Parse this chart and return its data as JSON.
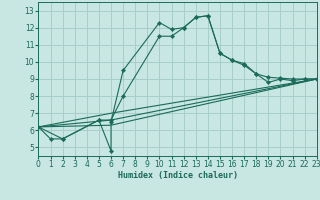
{
  "xlabel": "Humidex (Indice chaleur)",
  "xlim": [
    0,
    23
  ],
  "ylim": [
    4.5,
    13.5
  ],
  "xticks": [
    0,
    1,
    2,
    3,
    4,
    5,
    6,
    7,
    8,
    9,
    10,
    11,
    12,
    13,
    14,
    15,
    16,
    17,
    18,
    19,
    20,
    21,
    22,
    23
  ],
  "yticks": [
    5,
    6,
    7,
    8,
    9,
    10,
    11,
    12,
    13
  ],
  "bg_color": "#c8e6e2",
  "grid_color": "#a8ceca",
  "line_color": "#1a6b5a",
  "curve1_x": [
    0,
    1,
    2,
    5,
    6,
    6,
    7,
    10,
    11,
    12,
    13,
    14,
    15,
    16,
    17,
    18,
    19,
    20,
    21,
    22,
    23
  ],
  "curve1_y": [
    6.2,
    5.5,
    5.5,
    6.6,
    4.8,
    6.5,
    9.5,
    12.3,
    11.9,
    12.0,
    12.6,
    12.7,
    10.5,
    10.1,
    9.9,
    9.3,
    9.1,
    9.05,
    9.0,
    9.0,
    9.0
  ],
  "curve2_x": [
    0,
    2,
    5,
    6,
    7,
    10,
    11,
    12,
    13,
    14,
    15,
    16,
    17,
    18,
    19,
    20,
    21,
    22,
    23
  ],
  "curve2_y": [
    6.2,
    5.5,
    6.6,
    6.6,
    8.0,
    11.5,
    11.5,
    12.0,
    12.6,
    12.7,
    10.5,
    10.1,
    9.8,
    9.3,
    8.8,
    9.0,
    8.9,
    9.0,
    9.0
  ],
  "line3_x": [
    0,
    6,
    23
  ],
  "line3_y": [
    6.2,
    6.3,
    9.0
  ],
  "line4_x": [
    0,
    6,
    23
  ],
  "line4_y": [
    6.2,
    6.6,
    9.0
  ],
  "line5_x": [
    0,
    6,
    23
  ],
  "line5_y": [
    6.2,
    7.0,
    9.0
  ]
}
